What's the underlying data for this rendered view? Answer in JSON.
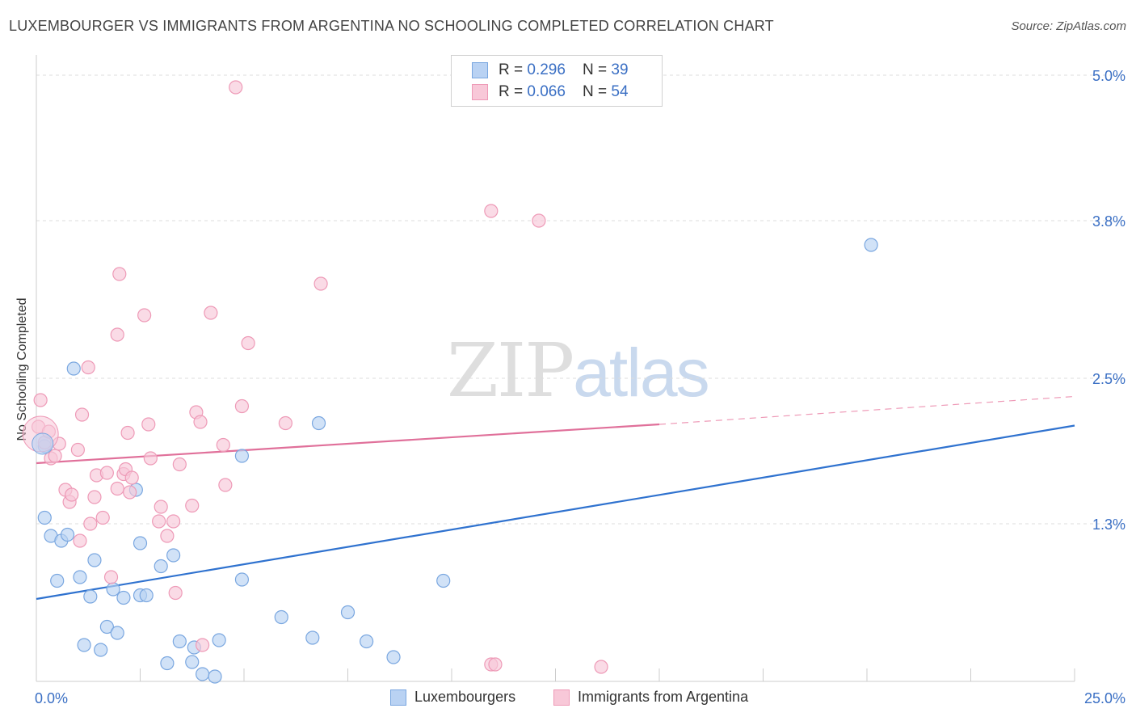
{
  "header": {
    "title": "LUXEMBOURGER VS IMMIGRANTS FROM ARGENTINA NO SCHOOLING COMPLETED CORRELATION CHART",
    "source": "Source: ZipAtlas.com"
  },
  "watermark": {
    "zip": "ZIP",
    "atlas": "atlas"
  },
  "legend": {
    "rows": [
      {
        "r_label": "R = ",
        "r_value": "0.296",
        "n_label": "N = ",
        "n_value": "39"
      },
      {
        "r_label": "R = ",
        "r_value": "0.066",
        "n_label": "N = ",
        "n_value": "54"
      }
    ]
  },
  "chart_data": {
    "type": "scatter",
    "title": "LUXEMBOURGER VS IMMIGRANTS FROM ARGENTINA NO SCHOOLING COMPLETED CORRELATION CHART",
    "xlabel": "",
    "ylabel": "No Schooling Completed",
    "xlim": [
      0,
      25
    ],
    "ylim": [
      0,
      5.1
    ],
    "x_tick_labels": [
      "0.0%",
      "25.0%"
    ],
    "y_ticks": [
      1.3,
      2.5,
      3.8,
      5.0
    ],
    "y_tick_labels": [
      "1.3%",
      "2.5%",
      "3.8%",
      "5.0%"
    ],
    "grid": true,
    "legend_position": "top-center",
    "series": [
      {
        "name": "Luxembourgers",
        "color": "#7aa7e0",
        "fill": "#b9d2f3",
        "trend": {
          "x": [
            0,
            25
          ],
          "y": [
            0.68,
            2.11
          ]
        },
        "points": [
          [
            0.2,
            1.94
          ],
          [
            0.2,
            1.35
          ],
          [
            0.35,
            1.2
          ],
          [
            0.5,
            0.83
          ],
          [
            0.6,
            1.16
          ],
          [
            0.75,
            1.21
          ],
          [
            0.9,
            2.58
          ],
          [
            1.05,
            0.86
          ],
          [
            1.15,
            0.3
          ],
          [
            1.3,
            0.7
          ],
          [
            1.4,
            1.0
          ],
          [
            1.55,
            0.26
          ],
          [
            1.7,
            0.45
          ],
          [
            1.85,
            0.76
          ],
          [
            1.95,
            0.4
          ],
          [
            2.1,
            0.69
          ],
          [
            2.4,
            1.58
          ],
          [
            2.5,
            0.71
          ],
          [
            2.5,
            1.14
          ],
          [
            2.65,
            0.71
          ],
          [
            3.0,
            0.95
          ],
          [
            3.15,
            0.15
          ],
          [
            3.3,
            1.04
          ],
          [
            3.45,
            0.33
          ],
          [
            3.75,
            0.16
          ],
          [
            3.8,
            0.28
          ],
          [
            4.0,
            0.06
          ],
          [
            4.3,
            0.04
          ],
          [
            4.4,
            0.34
          ],
          [
            4.95,
            0.84
          ],
          [
            4.95,
            1.86
          ],
          [
            5.9,
            0.53
          ],
          [
            6.65,
            0.36
          ],
          [
            6.8,
            2.13
          ],
          [
            7.5,
            0.57
          ],
          [
            7.95,
            0.33
          ],
          [
            8.6,
            0.2
          ],
          [
            9.8,
            0.83
          ],
          [
            20.1,
            3.6
          ]
        ]
      },
      {
        "name": "Immigrants from Argentina",
        "color": "#ee9ab7",
        "fill": "#f8c8d8",
        "trend": {
          "x": [
            0,
            15
          ],
          "y": [
            1.8,
            2.12
          ]
        },
        "trend_dashed": {
          "x": [
            15,
            25
          ],
          "y": [
            2.12,
            2.35
          ]
        },
        "points": [
          [
            0.05,
            2.1
          ],
          [
            0.1,
            2.32
          ],
          [
            0.2,
            1.97
          ],
          [
            0.3,
            2.06
          ],
          [
            0.35,
            1.84
          ],
          [
            0.45,
            1.86
          ],
          [
            0.55,
            1.96
          ],
          [
            0.7,
            1.58
          ],
          [
            0.8,
            1.48
          ],
          [
            0.85,
            1.54
          ],
          [
            1.0,
            1.91
          ],
          [
            1.05,
            1.16
          ],
          [
            1.1,
            2.2
          ],
          [
            1.25,
            2.59
          ],
          [
            1.3,
            1.3
          ],
          [
            1.4,
            1.52
          ],
          [
            1.45,
            1.7
          ],
          [
            1.6,
            1.35
          ],
          [
            1.7,
            1.72
          ],
          [
            1.8,
            0.86
          ],
          [
            1.95,
            1.59
          ],
          [
            1.95,
            2.86
          ],
          [
            2.0,
            3.36
          ],
          [
            2.1,
            1.71
          ],
          [
            2.15,
            1.75
          ],
          [
            2.2,
            2.05
          ],
          [
            2.25,
            1.56
          ],
          [
            2.3,
            1.68
          ],
          [
            2.6,
            3.02
          ],
          [
            2.7,
            2.12
          ],
          [
            2.75,
            1.84
          ],
          [
            2.95,
            1.32
          ],
          [
            3.0,
            1.44
          ],
          [
            3.15,
            1.2
          ],
          [
            3.3,
            1.32
          ],
          [
            3.35,
            0.73
          ],
          [
            3.45,
            1.79
          ],
          [
            3.75,
            1.45
          ],
          [
            3.85,
            2.22
          ],
          [
            3.95,
            2.14
          ],
          [
            4.0,
            0.3
          ],
          [
            4.2,
            3.04
          ],
          [
            4.5,
            1.95
          ],
          [
            4.55,
            1.62
          ],
          [
            4.8,
            4.9
          ],
          [
            4.95,
            2.27
          ],
          [
            5.1,
            2.79
          ],
          [
            6.0,
            2.13
          ],
          [
            6.85,
            3.28
          ],
          [
            10.95,
            3.88
          ],
          [
            10.95,
            0.14
          ],
          [
            11.05,
            0.14
          ],
          [
            12.1,
            3.8
          ],
          [
            13.6,
            0.12
          ]
        ]
      }
    ]
  },
  "bottom_legend": [
    {
      "label": "Luxembourgers"
    },
    {
      "label": "Immigrants from Argentina"
    }
  ]
}
